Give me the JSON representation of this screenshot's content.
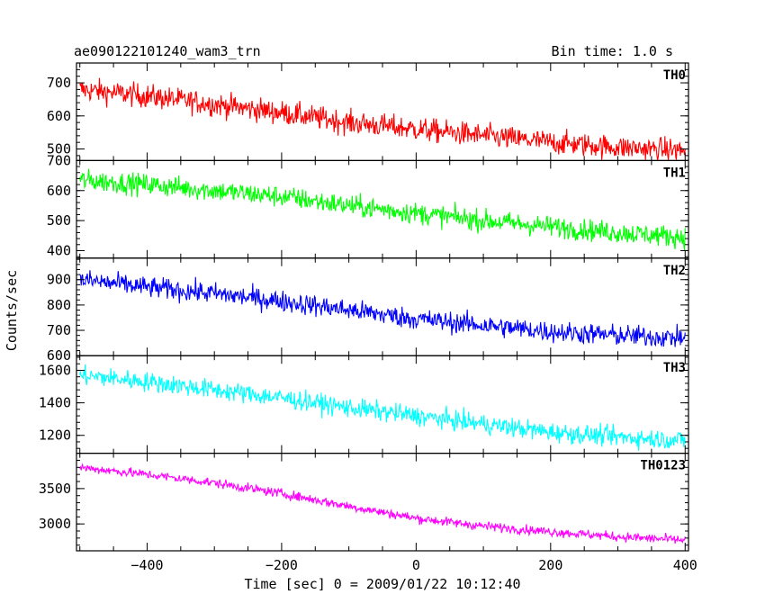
{
  "header": {
    "title": "ae090122101240_wam3_trn",
    "bin_time": "Bin time: 1.0 s"
  },
  "chart_data": {
    "type": "line",
    "xlabel": "Time [sec] 0 = 2009/01/22 10:12:40",
    "ylabel": "Counts/sec",
    "xlim": [
      -505,
      405
    ],
    "x_ticks": [
      -400,
      -200,
      0,
      200,
      400
    ],
    "x_tick_labels": [
      "−400",
      "−200",
      "0",
      "200",
      "400"
    ],
    "panels": [
      {
        "name": "TH0",
        "color": "#ff0000",
        "ylim": [
          465,
          760
        ],
        "y_ticks": [
          500,
          600,
          700
        ],
        "x": [
          -500,
          -400,
          -300,
          -200,
          -100,
          0,
          100,
          200,
          300,
          400
        ],
        "trend": [
          680,
          660,
          635,
          610,
          580,
          560,
          540,
          520,
          505,
          495
        ],
        "noise": 30
      },
      {
        "name": "TH1",
        "color": "#00ff00",
        "ylim": [
          375,
          700
        ],
        "y_ticks": [
          400,
          500,
          600,
          700
        ],
        "x": [
          -500,
          -400,
          -300,
          -200,
          -100,
          0,
          100,
          200,
          300,
          400
        ],
        "trend": [
          635,
          620,
          600,
          580,
          550,
          525,
          500,
          480,
          460,
          445
        ],
        "noise": 30
      },
      {
        "name": "TH2",
        "color": "#0000ff",
        "ylim": [
          600,
          985
        ],
        "y_ticks": [
          600,
          700,
          800,
          900
        ],
        "x": [
          -500,
          -400,
          -300,
          -200,
          -100,
          0,
          100,
          200,
          300,
          400
        ],
        "trend": [
          900,
          870,
          845,
          815,
          780,
          745,
          720,
          695,
          680,
          670
        ],
        "noise": 35
      },
      {
        "name": "TH3",
        "color": "#00ffff",
        "ylim": [
          1090,
          1690
        ],
        "y_ticks": [
          1200,
          1400,
          1600
        ],
        "x": [
          -500,
          -400,
          -300,
          -200,
          -100,
          0,
          100,
          200,
          300,
          400
        ],
        "trend": [
          1570,
          1530,
          1480,
          1430,
          1370,
          1320,
          1270,
          1220,
          1190,
          1170
        ],
        "noise": 50
      },
      {
        "name": "TH0123",
        "color": "#ff00ff",
        "ylim": [
          2620,
          4000
        ],
        "y_ticks": [
          3000,
          3500
        ],
        "x": [
          -500,
          -400,
          -300,
          -200,
          -100,
          0,
          100,
          200,
          300,
          400
        ],
        "trend": [
          3800,
          3700,
          3580,
          3430,
          3250,
          3080,
          2970,
          2890,
          2820,
          2770
        ],
        "noise": 55
      }
    ]
  }
}
